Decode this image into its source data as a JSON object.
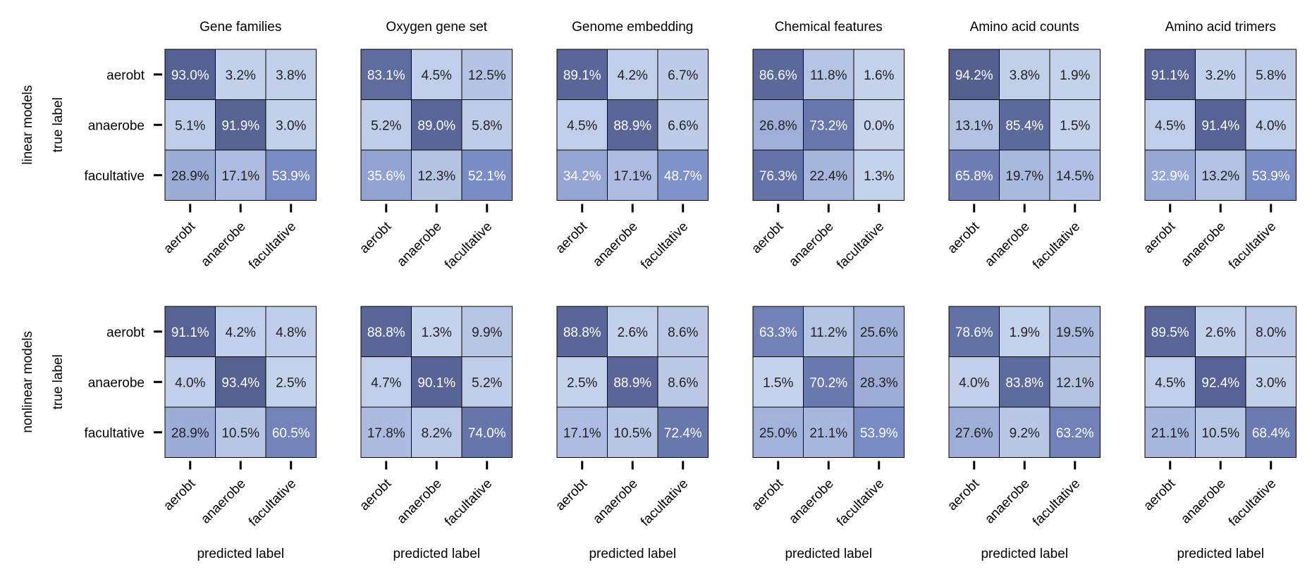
{
  "chart_data": {
    "type": "heatmap",
    "classes": [
      "aerobt",
      "anaerobe",
      "facultative"
    ],
    "row_labels": [
      "linear models",
      "nonlinear models"
    ],
    "ylabel": "true label",
    "xlabel": "predicted label",
    "value_suffix": "%",
    "colormap": {
      "low": "#c7d4ec",
      "mid": "#7c8fc8",
      "high": "#4f5a89"
    },
    "panels": [
      {
        "title": "Gene families",
        "linear": [
          [
            93.0,
            3.2,
            3.8
          ],
          [
            5.1,
            91.9,
            3.0
          ],
          [
            28.9,
            17.1,
            53.9
          ]
        ],
        "nonlinear": [
          [
            91.1,
            4.2,
            4.8
          ],
          [
            4.0,
            93.4,
            2.5
          ],
          [
            28.9,
            10.5,
            60.5
          ]
        ]
      },
      {
        "title": "Oxygen gene set",
        "linear": [
          [
            83.1,
            4.5,
            12.5
          ],
          [
            5.2,
            89.0,
            5.8
          ],
          [
            35.6,
            12.3,
            52.1
          ]
        ],
        "nonlinear": [
          [
            88.8,
            1.3,
            9.9
          ],
          [
            4.7,
            90.1,
            5.2
          ],
          [
            17.8,
            8.2,
            74.0
          ]
        ]
      },
      {
        "title": "Genome embedding",
        "linear": [
          [
            89.1,
            4.2,
            6.7
          ],
          [
            4.5,
            88.9,
            6.6
          ],
          [
            34.2,
            17.1,
            48.7
          ]
        ],
        "nonlinear": [
          [
            88.8,
            2.6,
            8.6
          ],
          [
            2.5,
            88.9,
            8.6
          ],
          [
            17.1,
            10.5,
            72.4
          ]
        ]
      },
      {
        "title": "Chemical features",
        "linear": [
          [
            86.6,
            11.8,
            1.6
          ],
          [
            26.8,
            73.2,
            0.0
          ],
          [
            76.3,
            22.4,
            1.3
          ]
        ],
        "nonlinear": [
          [
            63.3,
            11.2,
            25.6
          ],
          [
            1.5,
            70.2,
            28.3
          ],
          [
            25.0,
            21.1,
            53.9
          ]
        ]
      },
      {
        "title": "Amino acid counts",
        "linear": [
          [
            94.2,
            3.8,
            1.9
          ],
          [
            13.1,
            85.4,
            1.5
          ],
          [
            65.8,
            19.7,
            14.5
          ]
        ],
        "nonlinear": [
          [
            78.6,
            1.9,
            19.5
          ],
          [
            4.0,
            83.8,
            12.1
          ],
          [
            27.6,
            9.2,
            63.2
          ]
        ]
      },
      {
        "title": "Amino acid trimers",
        "linear": [
          [
            91.1,
            3.2,
            5.8
          ],
          [
            4.5,
            91.4,
            4.0
          ],
          [
            32.9,
            13.2,
            53.9
          ]
        ],
        "nonlinear": [
          [
            89.5,
            2.6,
            8.0
          ],
          [
            4.5,
            92.4,
            3.0
          ],
          [
            21.1,
            10.5,
            68.4
          ]
        ]
      }
    ]
  }
}
